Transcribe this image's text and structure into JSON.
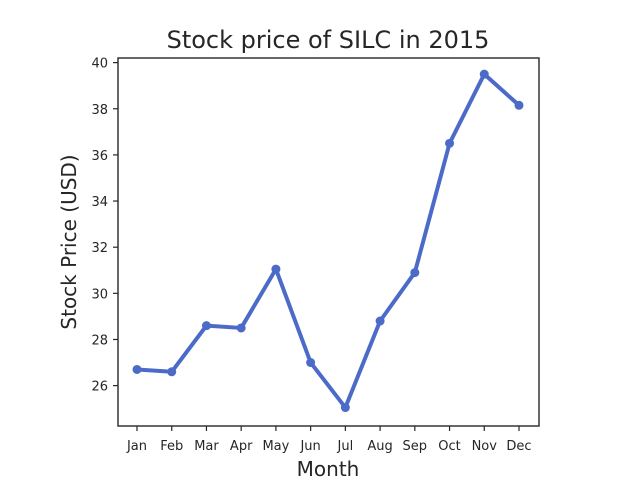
{
  "chart_data": {
    "type": "line",
    "title": "Stock price of SILC in 2015",
    "xlabel": "Month",
    "ylabel": "Stock Price (USD)",
    "categories": [
      "Jan",
      "Feb",
      "Mar",
      "Apr",
      "May",
      "Jun",
      "Jul",
      "Aug",
      "Sep",
      "Oct",
      "Nov",
      "Dec"
    ],
    "series": [
      {
        "values": [
          26.7,
          26.6,
          28.6,
          28.5,
          31.05,
          27.0,
          25.05,
          28.8,
          30.9,
          36.5,
          39.5,
          38.15
        ],
        "color": "#4c6bc8"
      }
    ],
    "ylim": [
      24.25,
      40.2
    ],
    "yticks": [
      26,
      28,
      30,
      32,
      34,
      36,
      38,
      40
    ],
    "grid": false,
    "legend": "none"
  }
}
